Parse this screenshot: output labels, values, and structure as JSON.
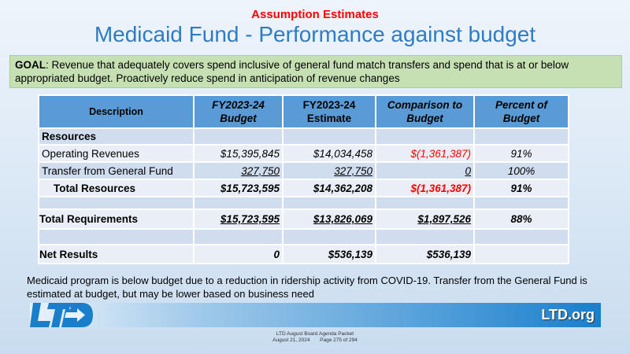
{
  "subtitle": "Assumption Estimates",
  "title": "Medicaid Fund - Performance against budget",
  "goal": {
    "label": "GOAL",
    "text": ": Revenue that adequately covers spend inclusive of general fund match transfers and spend that is at or below appropriated budget.  Proactively reduce spend in anticipation of revenue changes"
  },
  "table": {
    "headers": [
      "Description",
      "FY2023-24 Budget",
      "FY2023-24 Estimate",
      "Comparison to Budget",
      "Percent of Budget"
    ],
    "rows": [
      {
        "desc": "Resources",
        "budget": "",
        "estimate": "",
        "comparison": "",
        "percent": ""
      },
      {
        "desc": "Operating Revenues",
        "budget": "$15,395,845",
        "estimate": "$14,034,458",
        "comparison": "$(1,361,387)",
        "percent": "91%"
      },
      {
        "desc": "Transfer from General Fund",
        "budget": "327,750",
        "estimate": "327,750",
        "comparison": "0",
        "percent": "100%"
      },
      {
        "desc": "Total Resources",
        "budget": "$15,723,595",
        "estimate": "$14,362,208",
        "comparison": "$(1,361,387)",
        "percent": "91%"
      },
      {
        "desc": "",
        "budget": "",
        "estimate": "",
        "comparison": "",
        "percent": ""
      },
      {
        "desc": "Total Requirements",
        "budget": "$15,723,595",
        "estimate": "$13,826,069",
        "comparison": "$1,897,526",
        "percent": "88%"
      },
      {
        "desc": "",
        "budget": "",
        "estimate": "",
        "comparison": "",
        "percent": ""
      },
      {
        "desc": "Net Results",
        "budget": "0",
        "estimate": "$536,139",
        "comparison": "$536,139",
        "percent": ""
      }
    ]
  },
  "note": "Medicaid program is below budget due to a reduction in ridership activity from COVID-19. Transfer from the General Fund is estimated at budget, but may be lower based on business need",
  "footer": {
    "logo": "LTD",
    "site": "LTD.org",
    "packet": "LTD August Board Agenda Packet",
    "date": "August 21, 2024",
    "page": "Page 275 of 294"
  },
  "colors": {
    "title": "#2f7cc4",
    "header": "#5b9bd5",
    "negative": "#ff0000",
    "goal_bg": "#c6e0b4"
  }
}
